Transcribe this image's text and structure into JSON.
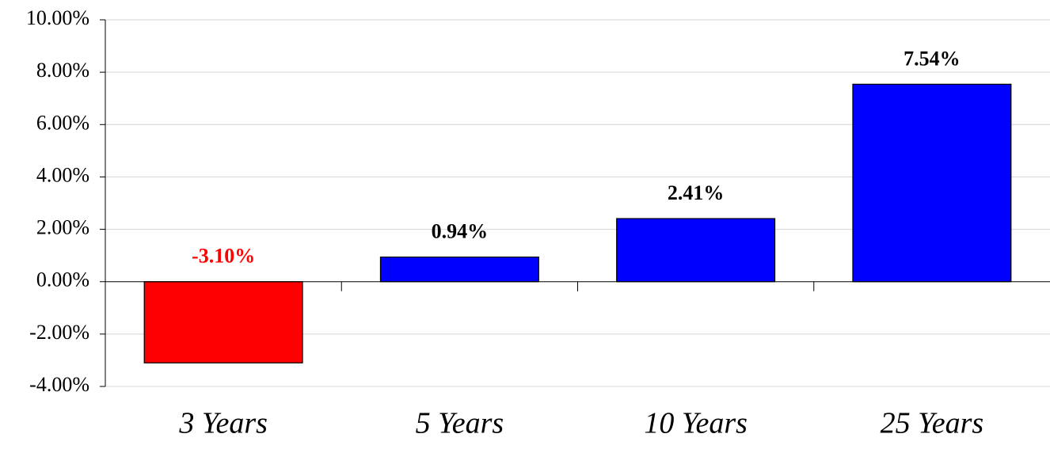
{
  "chart_data": {
    "type": "bar",
    "categories": [
      "3 Years",
      "5 Years",
      "10 Years",
      "25 Years"
    ],
    "values": [
      -3.1,
      0.94,
      2.41,
      7.54
    ],
    "data_labels": [
      "-3.10%",
      "0.94%",
      "2.41%",
      "7.54%"
    ],
    "title": "",
    "xlabel": "",
    "ylabel": "",
    "ylim": [
      -4,
      10
    ],
    "yticks": [
      -4,
      -2,
      0,
      2,
      4,
      6,
      8,
      10
    ],
    "ytick_labels": [
      "-4.00%",
      "-2.00%",
      "0.00%",
      "2.00%",
      "4.00%",
      "6.00%",
      "8.00%",
      "10.00%"
    ],
    "grid": true,
    "legend": "none",
    "colors": {
      "positive": "#0000ff",
      "negative": "#ff0000",
      "positive_label": "#000000",
      "negative_label": "#ff0000",
      "grid": "#d4d4d4"
    }
  }
}
